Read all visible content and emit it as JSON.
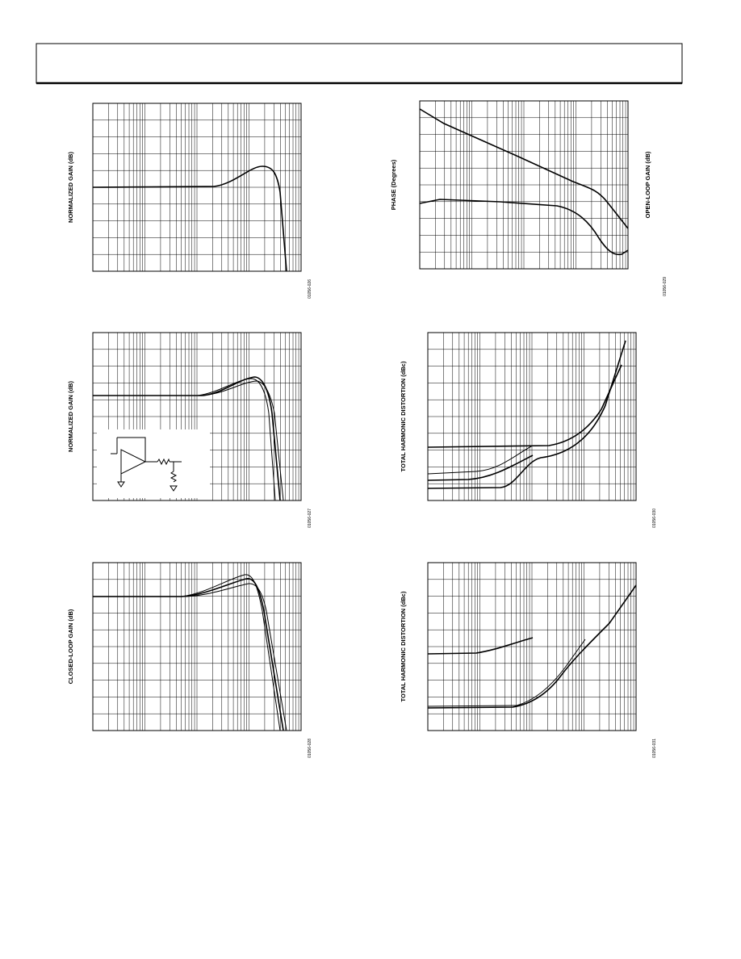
{
  "header": {},
  "figures": [
    {
      "y_label": "NORMALIZED GAIN (dB)",
      "code": "01056-026"
    },
    {
      "y_label": "NORMALIZED GAIN (dB)",
      "code": "01056-027"
    },
    {
      "y_label": "CLOSED-LOOP GAIN (dB)",
      "code": "01056-028"
    },
    {
      "y_label": "PHASE (Degrees)",
      "y2_label": "OPEN-LOOP GAIN (dB)",
      "code": "01056-029"
    },
    {
      "y_label": "TOTAL HARMONIC DISTORTION (dBc)",
      "code": "01056-030"
    },
    {
      "y_label": "TOTAL HARMONIC DISTORTION (dBc)",
      "code": "01056-031"
    }
  ]
}
